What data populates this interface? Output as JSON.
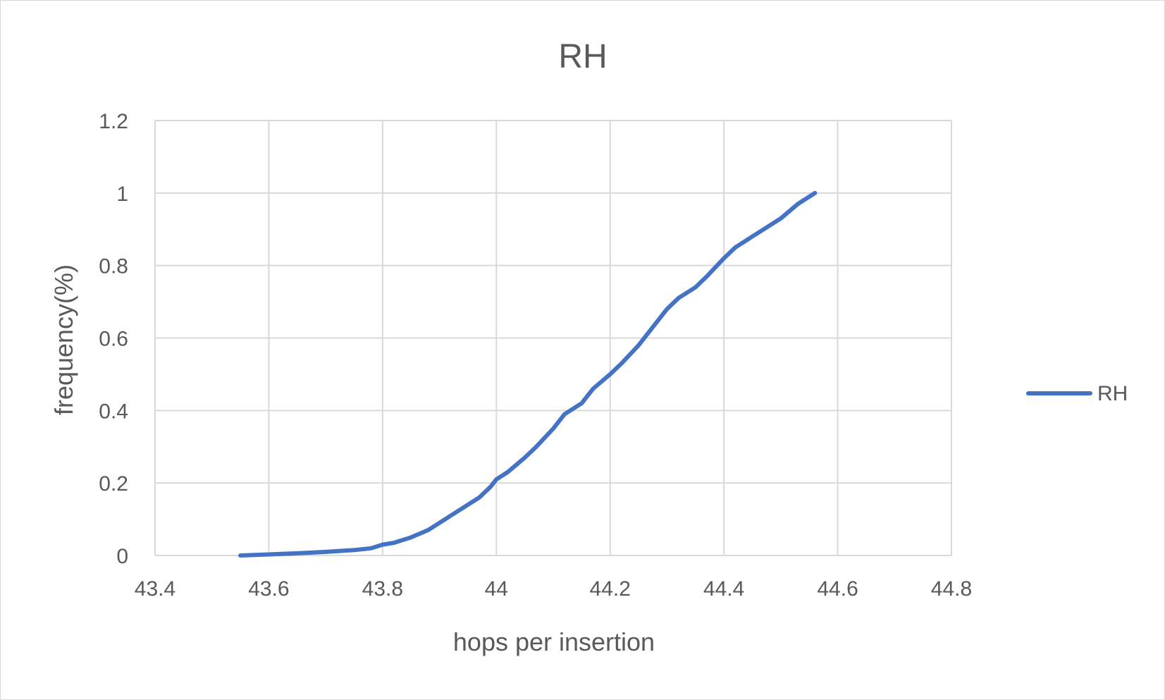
{
  "chart_data": {
    "type": "line",
    "title": "RH",
    "xlabel": "hops per insertion",
    "ylabel": "frequency(%)",
    "xlim": [
      43.4,
      44.8
    ],
    "ylim": [
      0,
      1.2
    ],
    "xticks": [
      "43.4",
      "43.6",
      "43.8",
      "44",
      "44.2",
      "44.4",
      "44.6",
      "44.8"
    ],
    "yticks": [
      "0",
      "0.2",
      "0.4",
      "0.6",
      "0.8",
      "1",
      "1.2"
    ],
    "grid": true,
    "legend_position": "right",
    "series": [
      {
        "name": "RH",
        "color": "#4472c4",
        "x": [
          43.55,
          43.6,
          43.65,
          43.7,
          43.75,
          43.78,
          43.8,
          43.82,
          43.85,
          43.88,
          43.9,
          43.92,
          43.95,
          43.97,
          43.99,
          44.0,
          44.02,
          44.05,
          44.07,
          44.1,
          44.12,
          44.15,
          44.17,
          44.2,
          44.22,
          44.25,
          44.27,
          44.3,
          44.32,
          44.35,
          44.37,
          44.4,
          44.42,
          44.45,
          44.48,
          44.5,
          44.53,
          44.56
        ],
        "y": [
          0.0,
          0.003,
          0.006,
          0.01,
          0.015,
          0.02,
          0.03,
          0.035,
          0.05,
          0.07,
          0.09,
          0.11,
          0.14,
          0.16,
          0.19,
          0.21,
          0.23,
          0.27,
          0.3,
          0.35,
          0.39,
          0.42,
          0.46,
          0.5,
          0.53,
          0.58,
          0.62,
          0.68,
          0.71,
          0.74,
          0.77,
          0.82,
          0.85,
          0.88,
          0.91,
          0.93,
          0.97,
          1.0
        ]
      }
    ]
  }
}
